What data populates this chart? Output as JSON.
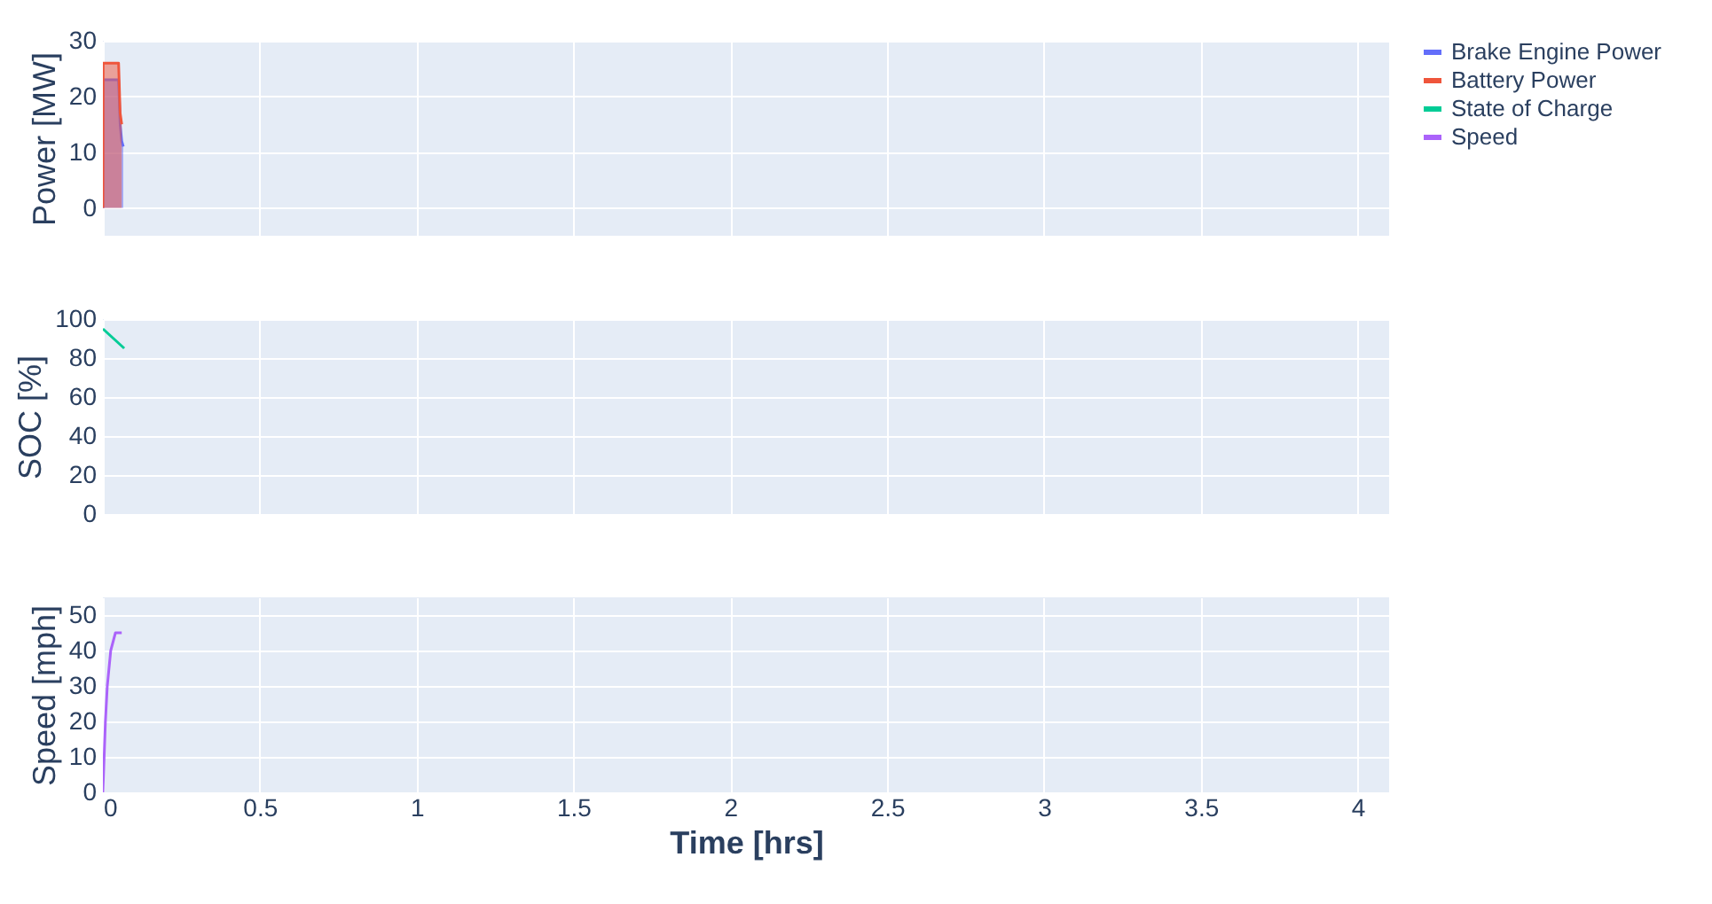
{
  "chart_data": [
    {
      "type": "area",
      "ylabel": "Power [MW]",
      "xlim": [
        0,
        4.1
      ],
      "xticks": [
        0,
        0.5,
        1,
        1.5,
        2,
        2.5,
        3,
        3.5,
        4
      ],
      "ylim": [
        -5,
        30
      ],
      "yticks": [
        0,
        10,
        20,
        30
      ],
      "grid": true,
      "legend": "top right",
      "tick_labels": "y",
      "series": [
        {
          "name": "Brake Engine Power",
          "color": "#636efa",
          "type": "area",
          "x": [
            0,
            0.001,
            0.05,
            0.055,
            0.06,
            0.065
          ],
          "values": [
            0,
            23,
            23,
            15,
            12,
            11
          ]
        },
        {
          "name": "Battery Power",
          "color": "#ef553b",
          "type": "area",
          "x": [
            0,
            0.001,
            0.05,
            0.055,
            0.06
          ],
          "values": [
            0,
            26,
            26,
            17,
            15
          ]
        }
      ]
    },
    {
      "type": "line",
      "ylabel": "SOC [%]",
      "xlim": [
        0,
        4.1
      ],
      "xticks": [
        0,
        0.5,
        1,
        1.5,
        2,
        2.5,
        3,
        3.5,
        4
      ],
      "ylim": [
        0,
        100
      ],
      "yticks": [
        0,
        20,
        40,
        60,
        80,
        100
      ],
      "grid": true,
      "tick_labels": "y",
      "series": [
        {
          "name": "State of Charge",
          "color": "#00cc96",
          "x": [
            0,
            0.068
          ],
          "values": [
            95,
            85
          ]
        }
      ]
    },
    {
      "type": "line",
      "xlabel": "Time [hrs]",
      "ylabel": "Speed [mph]",
      "xlim": [
        0,
        4.1
      ],
      "xticks": [
        0,
        0.5,
        1,
        1.5,
        2,
        2.5,
        3,
        3.5,
        4
      ],
      "ylim": [
        0,
        55
      ],
      "yticks": [
        0,
        10,
        20,
        30,
        40,
        50
      ],
      "grid": true,
      "series": [
        {
          "name": "Speed",
          "color": "#ab63fa",
          "x": [
            0,
            0.004,
            0.008,
            0.014,
            0.025,
            0.04,
            0.06
          ],
          "values": [
            0,
            10,
            20,
            30,
            40,
            45,
            45
          ]
        }
      ]
    }
  ]
}
